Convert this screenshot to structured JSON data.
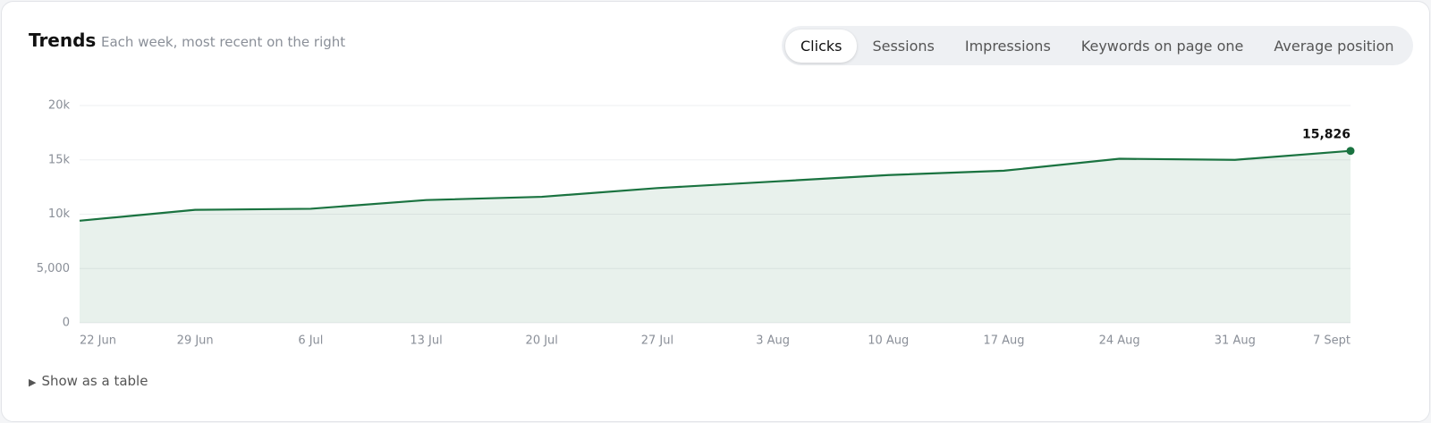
{
  "header": {
    "title": "Trends",
    "subtitle": "Each week, most recent on the right"
  },
  "tabs": [
    "Clicks",
    "Sessions",
    "Impressions",
    "Keywords on page one",
    "Average position"
  ],
  "footer": {
    "toggle": "Show as a table"
  },
  "chart_data": {
    "type": "area",
    "categories": [
      "22 Jun",
      "29 Jun",
      "6 Jul",
      "13 Jul",
      "20 Jul",
      "27 Jul",
      "3 Aug",
      "10 Aug",
      "17 Aug",
      "24 Aug",
      "31 Aug",
      "7 Sept"
    ],
    "values": [
      9400,
      10400,
      10500,
      11300,
      11600,
      12400,
      13000,
      13600,
      14000,
      15100,
      15000,
      15826
    ],
    "value_labels": [
      null,
      null,
      null,
      null,
      null,
      null,
      null,
      null,
      null,
      null,
      null,
      "15,826"
    ],
    "color": "#1a7340",
    "ylim": [
      0,
      20000
    ],
    "yticks": [
      0,
      {
        "value": 5000,
        "label": "5,000"
      },
      {
        "value": 10000,
        "label": "10k"
      },
      {
        "value": 15000,
        "label": "15k"
      },
      {
        "value": 20000,
        "label": "20k"
      }
    ],
    "grid": true
  }
}
